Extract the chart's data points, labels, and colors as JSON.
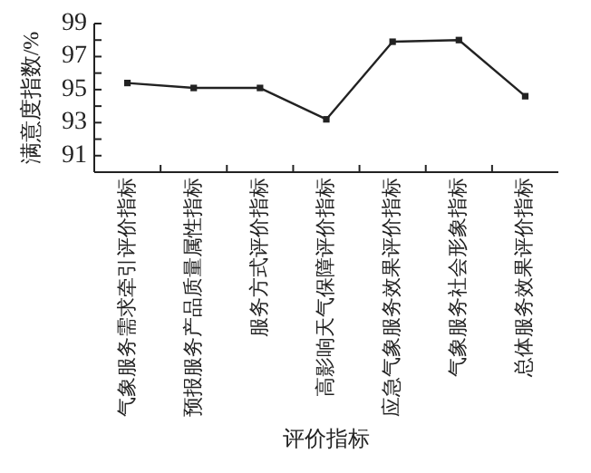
{
  "chart_data": {
    "type": "line",
    "ylabel": "满意度指数/%",
    "xlabel": "评价指标",
    "categories": [
      "气象服务需求牵引评价指标",
      "预报服务产品质量属性指标",
      "服务方式评价指标",
      "高影响天气保障评价指标",
      "应急气象服务效果评价指标",
      "气象服务社会形象指标",
      "总体服务效果评价指标"
    ],
    "values": [
      95.4,
      95.1,
      95.1,
      93.2,
      97.9,
      98.0,
      94.6
    ],
    "color": "#222222",
    "marker": "square",
    "line_style": "solid",
    "ylim": [
      90,
      99
    ],
    "yticks": [
      {
        "value": 90,
        "label": null
      },
      91,
      {
        "value": 92,
        "label": null
      },
      93,
      {
        "value": 94,
        "label": null
      },
      95,
      {
        "value": 96,
        "label": null
      },
      97,
      {
        "value": 98,
        "label": null
      },
      99
    ]
  }
}
